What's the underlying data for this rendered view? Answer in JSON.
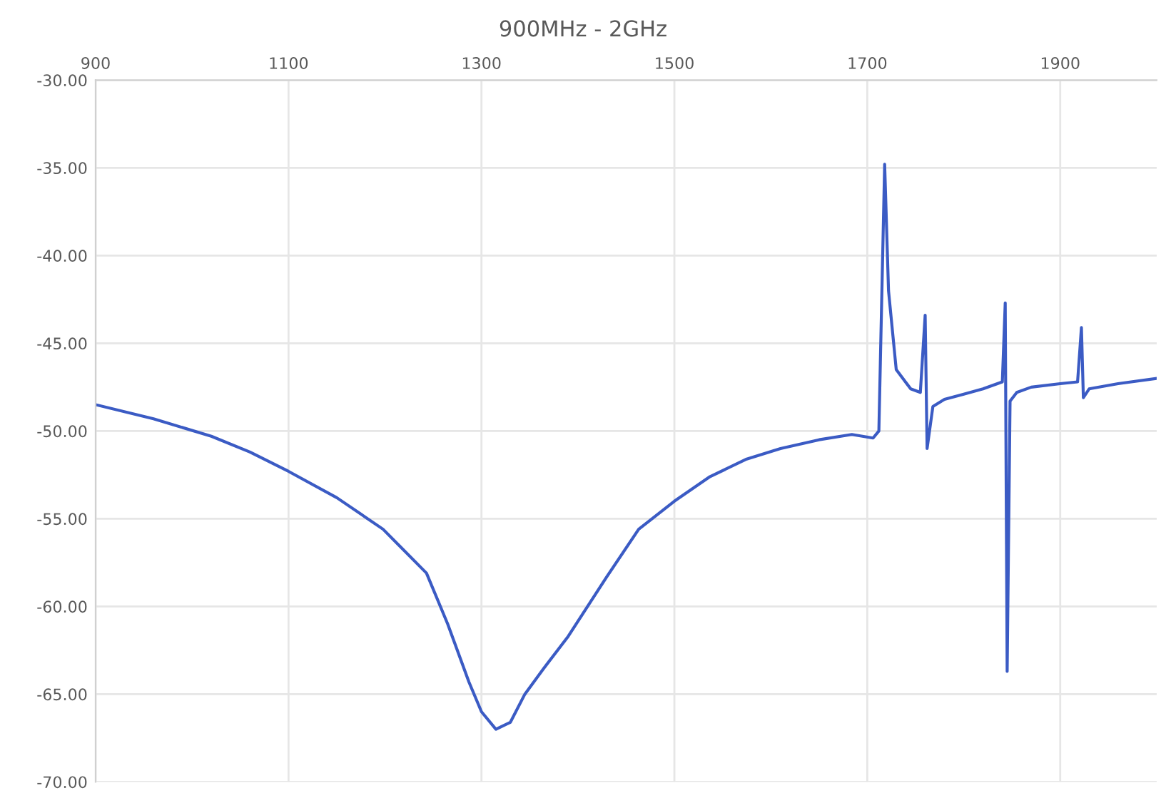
{
  "chart_data": {
    "type": "line",
    "title": "900MHz - 2GHz",
    "xlim": [
      900,
      2000
    ],
    "xticks": [
      900,
      1100,
      1300,
      1500,
      1700,
      1900
    ],
    "ylim": [
      -70,
      -30
    ],
    "yticks": [
      {
        "value": -30,
        "label": "-30.00"
      },
      {
        "value": -35,
        "label": "-35.00"
      },
      {
        "value": -40,
        "label": "-40.00"
      },
      {
        "value": -45,
        "label": "-45.00"
      },
      {
        "value": -50,
        "label": "-50.00"
      },
      {
        "value": -55,
        "label": "-55.00"
      },
      {
        "value": -60,
        "label": "-60.00"
      },
      {
        "value": -65,
        "label": "-65.00"
      },
      {
        "value": -70,
        "label": "-70.00"
      }
    ],
    "grid": true,
    "marker": "none",
    "line_style": "solid",
    "series": [
      {
        "color": "#3b5bc4",
        "x": [
          900,
          960,
          1020,
          1060,
          1100,
          1150,
          1198,
          1243,
          1265,
          1287,
          1300,
          1315,
          1330,
          1345,
          1365,
          1390,
          1430,
          1463,
          1500,
          1537,
          1575,
          1610,
          1650,
          1684,
          1706,
          1712,
          1718,
          1722,
          1730,
          1745,
          1755,
          1760,
          1762,
          1768,
          1780,
          1800,
          1820,
          1840,
          1843,
          1845,
          1848,
          1855,
          1870,
          1900,
          1918,
          1922,
          1924,
          1930,
          1960,
          2000
        ],
        "values": [
          -48.5,
          -49.3,
          -50.3,
          -51.2,
          -52.3,
          -53.8,
          -55.6,
          -58.1,
          -61.0,
          -64.3,
          -66.0,
          -67.0,
          -66.6,
          -65.0,
          -63.5,
          -61.7,
          -58.3,
          -55.6,
          -54.0,
          -52.6,
          -51.6,
          -51.0,
          -50.5,
          -50.2,
          -50.4,
          -50.0,
          -34.8,
          -42.0,
          -46.5,
          -47.6,
          -47.8,
          -43.4,
          -51.0,
          -48.6,
          -48.2,
          -47.9,
          -47.6,
          -47.2,
          -42.7,
          -63.7,
          -48.3,
          -47.8,
          -47.5,
          -47.3,
          -47.2,
          -44.1,
          -48.1,
          -47.6,
          -47.3,
          -47.0
        ]
      }
    ]
  }
}
